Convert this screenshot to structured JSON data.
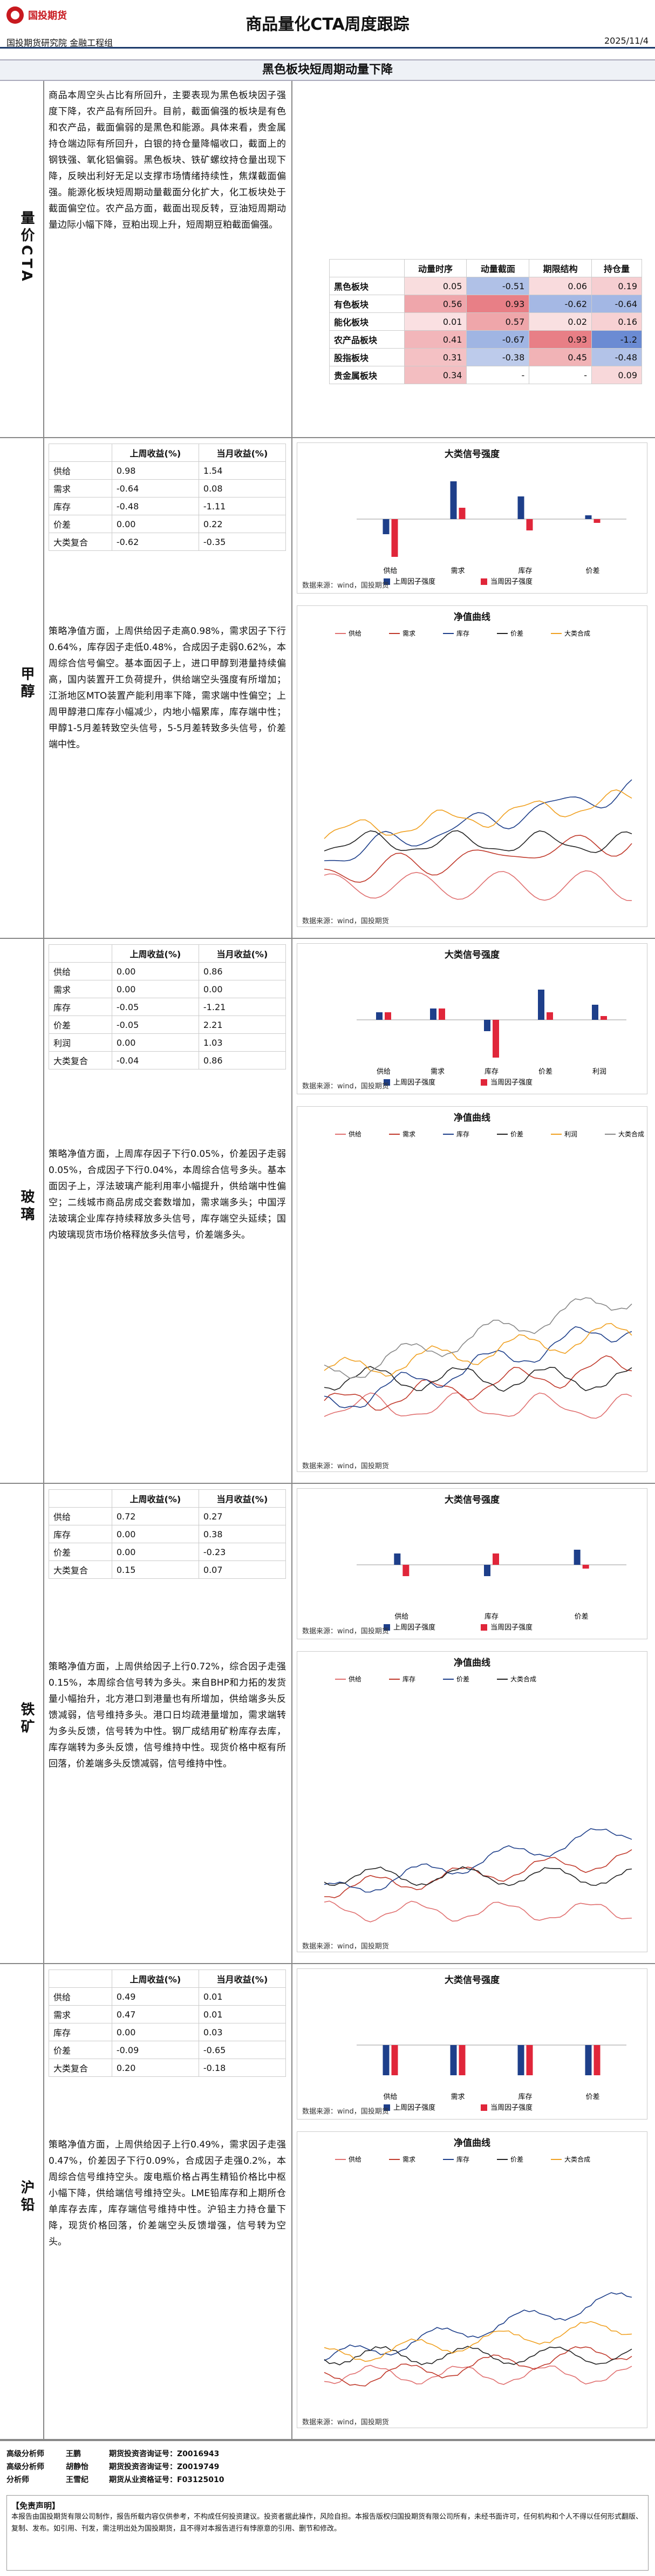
{
  "header": {
    "title": "商品量化CTA周度跟踪",
    "date": "2025/11/4",
    "dept": "国投期货研究院 金融工程组",
    "logo": "国投期货"
  },
  "subtitle": "黑色板块短周期动量下降",
  "summary": {
    "label": "量价CTA",
    "text": "商品本周空头占比有所回升，主要表现为黑色板块因子强度下降，农产品有所回升。目前，截面偏强的板块是有色和农产品，截面偏弱的是黑色和能源。具体来看，贵金属持仓端边际有所回升，白银的持仓量降幅收口，截面上的钢铁强、氧化铝偏弱。黑色板块、铁矿螺纹持仓量出现下降，反映出利好无足以支撑市场情绪持续性，焦煤截面偏强。能源化板块短周期动量截面分化扩大，化工板块处于截面偏空位。农产品方面，截面出现反转，豆油短周期动量边际小幅下降，豆粕出现上升，短周期豆粕截面偏强。",
    "table": {
      "headers": [
        "动量时序",
        "动量截面",
        "期限结构",
        "持仓量"
      ],
      "rows": [
        {
          "name": "黑色板块",
          "vals": [
            "0.05",
            "-0.51",
            "0.06",
            "0.19"
          ]
        },
        {
          "name": "有色板块",
          "vals": [
            "0.56",
            "0.93",
            "-0.62",
            "-0.64"
          ]
        },
        {
          "name": "能化板块",
          "vals": [
            "0.01",
            "0.57",
            "0.02",
            "0.16"
          ]
        },
        {
          "name": "农产品板块",
          "vals": [
            "0.41",
            "-0.67",
            "0.93",
            "-1.2"
          ]
        },
        {
          "name": "股指板块",
          "vals": [
            "0.31",
            "-0.38",
            "0.45",
            "-0.48"
          ]
        },
        {
          "name": "贵金属板块",
          "vals": [
            "0.34",
            "-",
            "-",
            "0.09"
          ]
        }
      ]
    }
  },
  "sections": [
    {
      "label": "甲醇",
      "table_headers": [
        "",
        "上周收益(%)",
        "当月收益(%)"
      ],
      "rows": [
        [
          "供给",
          "0.98",
          "1.54"
        ],
        [
          "需求",
          "-0.64",
          "0.08"
        ],
        [
          "库存",
          "-0.48",
          "-1.11"
        ],
        [
          "价差",
          "0.00",
          "0.22"
        ],
        [
          "大类复合",
          "-0.62",
          "-0.35"
        ]
      ],
      "bar_title": "大类信号强度",
      "bar_cats": [
        "供给",
        "需求",
        "库存",
        "价差"
      ],
      "bar_last": [
        -0.4,
        1.0,
        0.6,
        0.1
      ],
      "bar_this": [
        -1.0,
        0.3,
        -0.3,
        -0.1
      ],
      "legend_last": "上周因子强度",
      "legend_this": "当周因子强度",
      "text": "策略净值方面，上周供给因子走高0.98%，需求因子下行0.64%，库存因子走低0.48%，合成因子走弱0.62%，本周综合信号偏空。基本面因子上，进口甲醇到港量持续偏高，国内装置开工负荷提升，供给端空头强度有所增加；江浙地区MTO装置产能利用率下降，需求端中性偏空；上周甲醇港口库存小幅减少，内地小幅累库，库存端中性；甲醇1-5月差转致空头信号，5-5月差转致多头信号，价差端中性。",
      "line_title": "净值曲线",
      "line_legend": [
        "供给",
        "需求",
        "库存",
        "价差",
        "大类合成"
      ],
      "src": "数据来源：wind，国投期货"
    },
    {
      "label": "玻璃",
      "table_headers": [
        "",
        "上周收益(%)",
        "当月收益(%)"
      ],
      "rows": [
        [
          "供给",
          "0.00",
          "0.86"
        ],
        [
          "需求",
          "0.00",
          "0.00"
        ],
        [
          "库存",
          "-0.05",
          "-1.21"
        ],
        [
          "价差",
          "-0.05",
          "2.21"
        ],
        [
          "利润",
          "0.00",
          "1.03"
        ],
        [
          "大类复合",
          "-0.04",
          "0.86"
        ]
      ],
      "bar_title": "大类信号强度",
      "bar_cats": [
        "供给",
        "需求",
        "库存",
        "价差",
        "利润"
      ],
      "bar_last": [
        0.2,
        0.3,
        -0.3,
        0.8,
        0.4
      ],
      "bar_this": [
        0.2,
        0.3,
        -1.0,
        0.2,
        0.1
      ],
      "legend_last": "上周因子强度",
      "legend_this": "当周因子强度",
      "text": "策略净值方面，上周库存因子下行0.05%，价差因子走弱0.05%，合成因子下行0.04%，本周综合信号多头。基本面因子上，浮法玻璃产能利用率小幅提升，供给端中性偏空；二线城市商品房成交套数增加，需求端多头；中国浮法玻璃企业库存持续释放多头信号，库存端空头延续；国内玻璃现货市场价格释放多头信号，价差端多头。",
      "line_title": "净值曲线",
      "line_legend": [
        "供给",
        "需求",
        "库存",
        "价差",
        "利润",
        "大类合成"
      ],
      "src": "数据来源：wind，国投期货"
    },
    {
      "label": "铁矿",
      "table_headers": [
        "",
        "上周收益(%)",
        "当月收益(%)"
      ],
      "rows": [
        [
          "供给",
          "0.72",
          "0.27"
        ],
        [
          "库存",
          "0.00",
          "0.38"
        ],
        [
          "价差",
          "0.00",
          "-0.23"
        ],
        [
          "大类复合",
          "0.15",
          "0.07"
        ]
      ],
      "bar_title": "大类信号强度",
      "bar_cats": [
        "供给",
        "库存",
        "价差"
      ],
      "bar_last": [
        0.3,
        -0.3,
        0.4
      ],
      "bar_this": [
        -0.3,
        0.3,
        -0.1
      ],
      "legend_last": "上周因子强度",
      "legend_this": "当周因子强度",
      "text": "策略净值方面，上周供给因子上行0.72%，综合因子走强0.15%，本周综合信号转为多头。来自BHP和力拓的发货量小幅抬升，北方港口到港量也有所增加，供给端多头反馈减弱，信号维持多头。港口日均疏港量增加，需求端转为多头反馈，信号转为中性。钢厂成结用矿粉库存去库，库存端转为多头反馈，信号维持中性。现货价格中枢有所回落，价差端多头反馈减弱，信号维持中性。",
      "line_title": "净值曲线",
      "line_legend": [
        "供给",
        "库存",
        "价差",
        "大类合成"
      ],
      "src": "数据来源：wind，国投期货"
    },
    {
      "label": "沪铅",
      "table_headers": [
        "",
        "上周收益(%)",
        "当月收益(%)"
      ],
      "rows": [
        [
          "供给",
          "0.49",
          "0.01"
        ],
        [
          "需求",
          "0.47",
          "0.01"
        ],
        [
          "库存",
          "0.00",
          "0.03"
        ],
        [
          "价差",
          "-0.09",
          "-0.65"
        ],
        [
          "大类复合",
          "0.20",
          "-0.18"
        ]
      ],
      "bar_title": "大类信号强度",
      "bar_cats": [
        "供给",
        "需求",
        "库存",
        "价差"
      ],
      "bar_last": [
        -0.8,
        -0.8,
        -0.8,
        -0.8
      ],
      "bar_this": [
        -0.8,
        -0.8,
        -0.8,
        -0.8
      ],
      "legend_last": "上周因子强度",
      "legend_this": "当周因子强度",
      "text": "策略净值方面，上周供给因子上行0.49%，需求因子走强0.47%，价差因子下行0.09%，合成因子走强0.2%，本周综合信号维持空头。废电瓶价格占再生精铅价格比中枢小幅下降，供给端信号维持空头。LME铅库存和上期所仓单库存去库，库存端信号维持中性。沪铅主力持仓量下降，现货价格回落，价差端空头反馈增强，信号转为空头。",
      "line_title": "净值曲线",
      "line_legend": [
        "供给",
        "需求",
        "库存",
        "价差",
        "大类合成"
      ],
      "src": "数据来源：wind，国投期货"
    }
  ],
  "analysts": [
    {
      "role": "高级分析师",
      "name": "王鹏",
      "cert": "期货投资咨询证号：Z0016943"
    },
    {
      "role": "高级分析师",
      "name": "胡静怡",
      "cert": "期货投资咨询证号：Z0019749"
    },
    {
      "role": "分析师",
      "name": "王雪纪",
      "cert": "期货从业资格证号：F03125010"
    }
  ],
  "disclaimer_title": "【免责声明】",
  "disclaimer": "本报告由国投期货有限公司制作，报告所载内容仅供参考，不构成任何投资建议。投资者据此操作，风险自担。本报告版权归国投期货有限公司所有，未经书面许可，任何机构和个人不得以任何形式翻版、复制、发布。如引用、刊发，需注明出处为国投期货，且不得对本报告进行有悖原意的引用、删节和修改。"
}
